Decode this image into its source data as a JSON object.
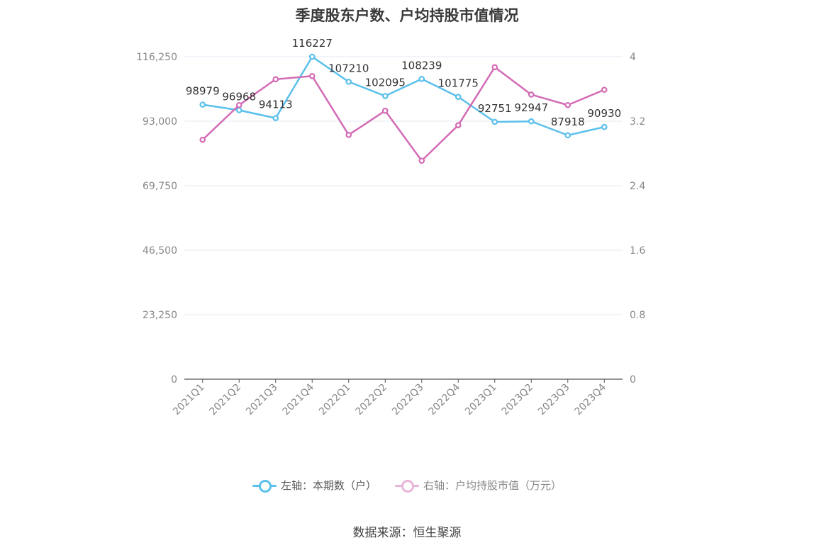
{
  "chart_data": {
    "type": "line",
    "title": "季度股东户数、户均持股市值情况",
    "categories": [
      "2021Q1",
      "2021Q2",
      "2021Q3",
      "2021Q4",
      "2022Q1",
      "2022Q2",
      "2022Q3",
      "2022Q4",
      "2023Q1",
      "2023Q2",
      "2023Q3",
      "2023Q4"
    ],
    "left_axis": {
      "min": 0,
      "max": 116250,
      "ticks": [
        "0",
        "23,250",
        "46,500",
        "69,750",
        "93,000",
        "116,250"
      ]
    },
    "right_axis": {
      "min": 0,
      "max": 4,
      "ticks": [
        "0",
        "0.8",
        "1.6",
        "2.4",
        "3.2",
        "4"
      ]
    },
    "series": [
      {
        "name": "左轴：本期数（户）",
        "axis": "left",
        "color": "#5bc0eb",
        "values": [
          98979,
          96968,
          94113,
          116227,
          107210,
          102095,
          108239,
          101775,
          92751,
          92947,
          87918,
          90930
        ],
        "labels": [
          "98979",
          "96968",
          "94113",
          "116227",
          "107210",
          "102095",
          "108239",
          "101775",
          "92751",
          "92947",
          "87918",
          "90930"
        ]
      },
      {
        "name": "右轴：户均持股市值（万元）",
        "axis": "right",
        "color": "#d36bb5",
        "values": [
          2.97,
          3.4,
          3.72,
          3.76,
          3.03,
          3.33,
          2.71,
          3.15,
          3.87,
          3.53,
          3.4,
          3.59
        ]
      }
    ],
    "legend_position": "bottom",
    "grid": true
  },
  "source": "数据来源：恒生聚源"
}
